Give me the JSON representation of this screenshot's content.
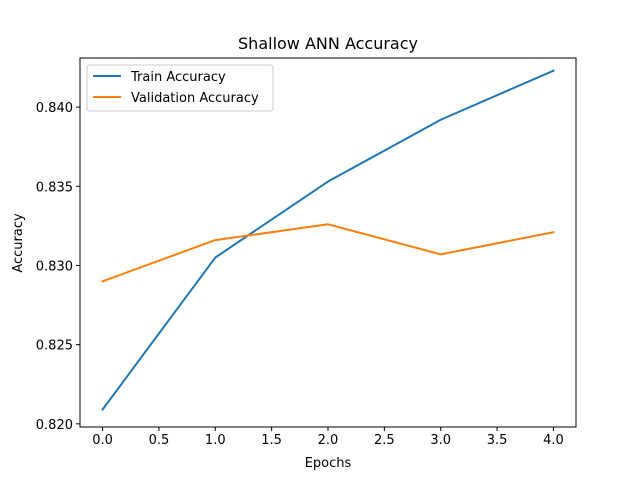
{
  "chart_data": {
    "type": "line",
    "title": "Shallow ANN Accuracy",
    "xlabel": "Epochs",
    "ylabel": "Accuracy",
    "xlim": [
      -0.2,
      4.2
    ],
    "ylim": [
      0.8198,
      0.8431
    ],
    "xticks": [
      0.0,
      0.5,
      1.0,
      1.5,
      2.0,
      2.5,
      3.0,
      3.5,
      4.0
    ],
    "xtick_labels": [
      "0.0",
      "0.5",
      "1.0",
      "1.5",
      "2.0",
      "2.5",
      "3.0",
      "3.5",
      "4.0"
    ],
    "yticks": [
      0.82,
      0.825,
      0.83,
      0.835,
      0.84
    ],
    "ytick_labels": [
      "0.820",
      "0.825",
      "0.830",
      "0.835",
      "0.840"
    ],
    "grid": false,
    "legend_position": "upper-left",
    "x": [
      0,
      1,
      2,
      3,
      4
    ],
    "series": [
      {
        "name": "Train Accuracy",
        "color": "#1f77b4",
        "values": [
          0.8209,
          0.8305,
          0.8353,
          0.8392,
          0.8423
        ]
      },
      {
        "name": "Validation Accuracy",
        "color": "#ff7f0e",
        "values": [
          0.829,
          0.8316,
          0.8326,
          0.8307,
          0.8321
        ]
      }
    ]
  }
}
